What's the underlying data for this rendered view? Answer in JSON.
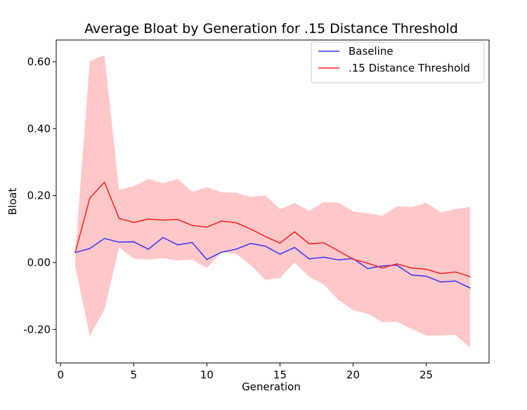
{
  "chart_data": {
    "type": "line",
    "title": "Average Bloat by Generation for .15 Distance Threshold",
    "xlabel": "Generation",
    "ylabel": "Bloat",
    "xlim": [
      -0.3,
      29.3
    ],
    "ylim": [
      -0.3,
      0.665
    ],
    "x_ticks": [
      0,
      5,
      10,
      15,
      20,
      25
    ],
    "y_ticks": [
      -0.2,
      0.0,
      0.2,
      0.4,
      0.6
    ],
    "y_tick_labels": [
      "-0.20",
      "0.00",
      "0.20",
      "0.40",
      "0.60"
    ],
    "x_tick_labels": [
      "0",
      "5",
      "10",
      "15",
      "20",
      "25"
    ],
    "grid": false,
    "legend_position": "top-right",
    "x": [
      1,
      2,
      3,
      4,
      5,
      6,
      7,
      8,
      9,
      10,
      11,
      12,
      13,
      14,
      15,
      16,
      17,
      18,
      19,
      20,
      21,
      22,
      23,
      24,
      25,
      26,
      27,
      28
    ],
    "series": [
      {
        "name": "Baseline",
        "color": "#3333ff",
        "values": [
          0.03,
          0.042,
          0.072,
          0.061,
          0.062,
          0.04,
          0.075,
          0.053,
          0.06,
          0.009,
          0.031,
          0.04,
          0.057,
          0.049,
          0.025,
          0.045,
          0.011,
          0.016,
          0.008,
          0.012,
          -0.018,
          -0.01,
          -0.008,
          -0.037,
          -0.041,
          -0.058,
          -0.055,
          -0.076
        ]
      },
      {
        "name": ".15 Distance Threshold",
        "color": "#ff1f1f",
        "values": [
          0.03,
          0.193,
          0.24,
          0.132,
          0.12,
          0.13,
          0.127,
          0.129,
          0.111,
          0.106,
          0.124,
          0.119,
          0.1,
          0.078,
          0.058,
          0.092,
          0.056,
          0.059,
          0.035,
          0.01,
          -0.002,
          -0.016,
          -0.004,
          -0.016,
          -0.02,
          -0.033,
          -0.028,
          -0.042
        ],
        "band_upper": [
          0.03,
          0.602,
          0.62,
          0.217,
          0.228,
          0.25,
          0.237,
          0.25,
          0.212,
          0.225,
          0.21,
          0.209,
          0.196,
          0.201,
          0.16,
          0.178,
          0.155,
          0.181,
          0.179,
          0.153,
          0.147,
          0.14,
          0.168,
          0.166,
          0.179,
          0.15,
          0.16,
          0.166
        ],
        "band_lower": [
          -0.012,
          -0.22,
          -0.14,
          0.045,
          0.012,
          0.009,
          0.013,
          0.006,
          0.009,
          -0.017,
          0.03,
          0.026,
          -0.007,
          -0.052,
          -0.046,
          0.0,
          -0.043,
          -0.065,
          -0.112,
          -0.142,
          -0.153,
          -0.178,
          -0.177,
          -0.198,
          -0.218,
          -0.218,
          -0.216,
          -0.254
        ],
        "band_color": "#ffc8c8"
      }
    ]
  }
}
